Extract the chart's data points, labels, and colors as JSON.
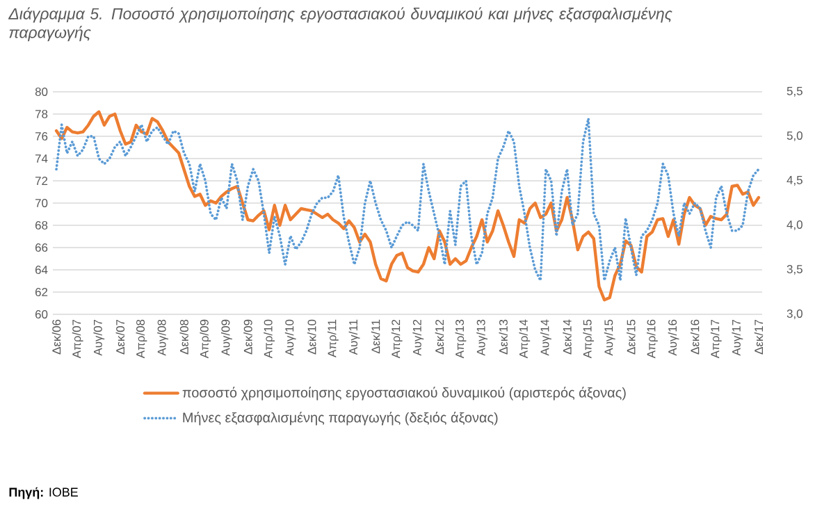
{
  "chart_data": {
    "type": "line",
    "title": "Διάγραμμα 5. Ποσοστό χρησιμοποίησης εργοστασιακού δυναμικού και μήνες εξασφαλισμένης παραγωγής",
    "annotations": [
      "**Πηγή:** IOBE"
    ],
    "categories": [
      "Δεκ/06",
      null,
      null,
      null,
      "Απρ/07",
      null,
      null,
      null,
      "Αυγ/07",
      null,
      null,
      null,
      "Δεκ/07",
      null,
      null,
      null,
      "Απρ/08",
      null,
      null,
      null,
      "Αυγ/08",
      null,
      null,
      null,
      "Δεκ/08",
      null,
      null,
      null,
      "Απρ/09",
      null,
      null,
      null,
      "Αυγ/09",
      null,
      null,
      null,
      "Δεκ/09",
      null,
      null,
      null,
      "Απρ/10",
      null,
      null,
      null,
      "Αυγ/10",
      null,
      null,
      null,
      "Δεκ/10",
      null,
      null,
      null,
      "Απρ/11",
      null,
      null,
      null,
      "Αυγ/11",
      null,
      null,
      null,
      "Δεκ/11",
      null,
      null,
      null,
      "Απρ/12",
      null,
      null,
      null,
      "Αυγ/12",
      null,
      null,
      null,
      "Δεκ/12",
      null,
      null,
      null,
      "Απρ/13",
      null,
      null,
      null,
      "Αυγ/13",
      null,
      null,
      null,
      "Δεκ/13",
      null,
      null,
      null,
      "Απρ/14",
      null,
      null,
      null,
      "Αυγ/14",
      null,
      null,
      null,
      "Δεκ/14",
      null,
      null,
      null,
      "Απρ/15",
      null,
      null,
      null,
      "Αυγ/15",
      null,
      null,
      null,
      "Δεκ/15",
      null,
      null,
      null,
      "Απρ/16",
      null,
      null,
      null,
      "Αυγ/16",
      null,
      null,
      null,
      "Δεκ/16",
      null,
      null,
      null,
      "Απρ/17",
      null,
      null,
      null,
      "Αυγ/17",
      null,
      null,
      null,
      "Δεκ/17"
    ],
    "series": [
      {
        "name": "ποσοστό χρησιμοποίησης εργοστασιακού δυναμικού  (αριστερός άξονας)",
        "color": "#ed7d31",
        "line_style": "solid",
        "values": [
          76.5,
          75.8,
          76.8,
          76.4,
          76.3,
          76.4,
          77.0,
          77.8,
          78.2,
          77.0,
          77.8,
          78.0,
          76.5,
          75.3,
          75.5,
          77.0,
          76.4,
          76.2,
          77.6,
          77.3,
          76.5,
          75.5,
          75.0,
          74.5,
          73.0,
          71.5,
          70.6,
          70.8,
          69.8,
          70.2,
          70.0,
          70.6,
          71.0,
          71.3,
          71.5,
          70.0,
          68.5,
          68.4,
          68.9,
          69.3,
          67.6,
          69.8,
          68.0,
          69.8,
          68.5,
          69.0,
          69.5,
          69.4,
          69.3,
          69.0,
          68.7,
          69.0,
          68.5,
          68.2,
          67.7,
          68.4,
          67.8,
          66.5,
          67.2,
          66.5,
          64.5,
          63.2,
          63.0,
          64.5,
          65.3,
          65.5,
          64.2,
          63.9,
          63.8,
          64.5,
          66.0,
          65.0,
          67.5,
          66.5,
          64.5,
          65.0,
          64.5,
          64.8,
          66.0,
          67.0,
          68.5,
          66.5,
          67.5,
          69.3,
          68.0,
          66.5,
          65.2,
          68.5,
          68.2,
          69.5,
          70.0,
          68.7,
          69.0,
          70.0,
          67.5,
          68.5,
          70.5,
          68.5,
          65.8,
          67.0,
          67.4,
          66.8,
          62.5,
          61.3,
          61.5,
          63.5,
          64.5,
          66.6,
          66.2,
          64.3,
          63.8,
          67.0,
          67.4,
          68.5,
          68.6,
          67.0,
          68.5,
          66.3,
          69.0,
          70.5,
          69.8,
          69.5,
          68.0,
          68.8,
          68.6,
          68.5,
          69.0,
          71.5,
          71.6,
          70.8,
          71.0,
          69.8,
          70.5
        ]
      },
      {
        "name": "Μήνες εξασφαλισμένης παραγωγής (δεξιός άξονας)",
        "color": "#5b9bd5",
        "line_style": "dotted",
        "axis": "y2",
        "values": [
          4.63,
          5.13,
          4.81,
          4.94,
          4.78,
          4.85,
          5.0,
          5.0,
          4.75,
          4.69,
          4.75,
          4.88,
          4.94,
          4.78,
          4.88,
          5.0,
          5.13,
          4.94,
          5.06,
          5.1,
          5.0,
          4.91,
          5.06,
          5.03,
          4.81,
          4.69,
          4.38,
          4.69,
          4.5,
          4.13,
          4.06,
          4.31,
          4.19,
          4.69,
          4.5,
          4.06,
          4.44,
          4.63,
          4.5,
          4.13,
          3.69,
          4.1,
          3.88,
          3.56,
          3.88,
          3.73,
          3.81,
          3.94,
          4.13,
          4.25,
          4.31,
          4.31,
          4.38,
          4.56,
          4.1,
          3.81,
          3.56,
          3.75,
          4.25,
          4.5,
          4.25,
          4.06,
          3.94,
          3.75,
          3.88,
          4.0,
          4.04,
          4.0,
          3.94,
          4.69,
          4.38,
          4.13,
          3.88,
          3.56,
          4.16,
          3.78,
          4.44,
          4.5,
          3.88,
          3.56,
          3.69,
          4.13,
          4.31,
          4.75,
          4.88,
          5.06,
          4.94,
          4.44,
          4.13,
          3.75,
          3.5,
          3.38,
          4.63,
          4.5,
          3.88,
          4.38,
          4.63,
          4.0,
          4.13,
          4.94,
          5.2,
          4.13,
          4.0,
          3.38,
          3.6,
          3.75,
          3.38,
          4.08,
          3.75,
          3.44,
          3.88,
          3.94,
          4.06,
          4.25,
          4.69,
          4.56,
          4.13,
          3.88,
          4.25,
          4.13,
          4.25,
          4.19,
          3.94,
          3.75,
          4.31,
          4.44,
          4.13,
          3.94,
          3.94,
          4.0,
          4.38,
          4.56,
          4.63
        ]
      }
    ],
    "ylim": [
      60,
      80
    ],
    "yticks": [
      60,
      62,
      64,
      66,
      68,
      70,
      72,
      74,
      76,
      78,
      80
    ],
    "y2lim": [
      3,
      5.5
    ],
    "y2ticks": [
      {
        "value": 3,
        "label": "3,0"
      },
      {
        "value": 3.5,
        "label": "3,5"
      },
      {
        "value": 4,
        "label": "4,0"
      },
      {
        "value": 4.5,
        "label": "4,5"
      },
      {
        "value": 5,
        "label": "5,0"
      },
      {
        "value": 5.5,
        "label": "5,5"
      }
    ],
    "grid": "y",
    "legend": "bottom",
    "marker": "none"
  }
}
